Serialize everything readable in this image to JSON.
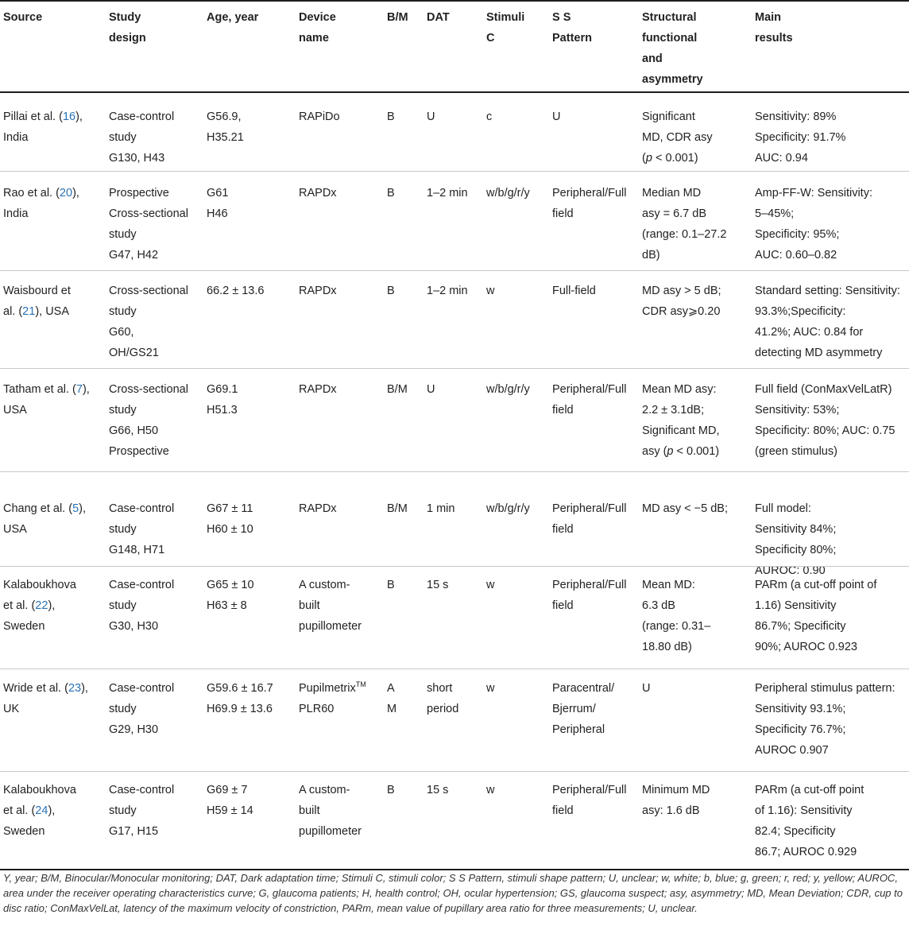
{
  "headers": [
    [
      "Source"
    ],
    [
      "Study",
      "design"
    ],
    [
      "Age, year"
    ],
    [
      "Device",
      "name"
    ],
    [
      "B/M"
    ],
    [
      "DAT"
    ],
    [
      "Stimuli",
      "C"
    ],
    [
      "S S",
      "Pattern"
    ],
    [
      "Structural",
      "functional",
      "and",
      "asymmetry"
    ],
    [
      "Main",
      "results"
    ]
  ],
  "rows": [
    {
      "source": {
        "pre": "Pillai et al. (",
        "ref": "16",
        "post": "),",
        "line2": "India"
      },
      "cells": [
        [
          "Case-control",
          "study",
          "G130, H43"
        ],
        [
          "G56.9,",
          "H35.21"
        ],
        [
          "RAPiDo"
        ],
        [
          "B"
        ],
        [
          "U"
        ],
        [
          "c"
        ],
        [
          "U"
        ],
        [
          "Significant",
          "MD, CDR asy",
          "(p < 0.001)"
        ],
        [
          "Sensitivity: 89%",
          "Specificity: 91.7%",
          "AUC: 0.94"
        ]
      ]
    },
    {
      "source": {
        "pre": "Rao et al. (",
        "ref": "20",
        "post": "),",
        "line2": "India"
      },
      "cells": [
        [
          "Prospective",
          "Cross-sectional",
          "study",
          "G47, H42"
        ],
        [
          "G61",
          "H46"
        ],
        [
          "RAPDx"
        ],
        [
          "B"
        ],
        [
          "1–2 min"
        ],
        [
          "w/b/g/r/y"
        ],
        [
          "Peripheral/Full",
          "field"
        ],
        [
          "Median MD",
          "asy = 6.7 dB",
          "(range: 0.1–27.2",
          "dB)"
        ],
        [
          "Amp-FF-W: Sensitivity:",
          "5–45%;",
          "Specificity: 95%;",
          "AUC: 0.60–0.82"
        ]
      ]
    },
    {
      "source": {
        "pre": "Waisbourd et",
        "mid": "al. (",
        "ref": "21",
        "post": "), USA"
      },
      "cells": [
        [
          "Cross-sectional",
          "study",
          "G60,",
          "OH/GS21"
        ],
        [
          "66.2 ± 13.6"
        ],
        [
          "RAPDx"
        ],
        [
          "B"
        ],
        [
          "1–2 min"
        ],
        [
          "w"
        ],
        [
          "Full-field"
        ],
        [
          "MD asy > 5 dB;",
          "CDR asy⩾0.20"
        ],
        [
          "Standard setting: Sensitivity:",
          "93.3%;Specificity:",
          "41.2%; AUC: 0.84 for",
          "detecting MD asymmetry"
        ]
      ]
    },
    {
      "source": {
        "pre": "Tatham et al. (",
        "ref": "7",
        "post": "),",
        "line2": "USA"
      },
      "cells": [
        [
          "Cross-sectional",
          "study",
          "G66, H50",
          "Prospective"
        ],
        [
          "G69.1",
          "H51.3"
        ],
        [
          "RAPDx"
        ],
        [
          "B/M"
        ],
        [
          "U"
        ],
        [
          "w/b/g/r/y"
        ],
        [
          "Peripheral/Full",
          "field"
        ],
        [
          "Mean MD asy:",
          "2.2 ± 3.1dB;",
          "Significant MD,",
          "asy (p < 0.001)"
        ],
        [
          "Full field (ConMaxVelLatR)",
          "Sensitivity: 53%;",
          "Specificity: 80%; AUC: 0.75",
          "(green stimulus)"
        ]
      ]
    },
    {
      "source": {
        "pre": "Chang et al. (",
        "ref": "5",
        "post": "),",
        "line2": "USA"
      },
      "cells": [
        [
          "Case-control",
          "study",
          "G148, H71"
        ],
        [
          "G67 ± 11",
          "H60 ± 10"
        ],
        [
          "RAPDx"
        ],
        [
          "B/M"
        ],
        [
          "1 min"
        ],
        [
          "w/b/g/r/y"
        ],
        [
          "Peripheral/Full",
          "field"
        ],
        [
          "MD asy < −5 dB;"
        ],
        [
          "Full model:",
          "Sensitivity 84%;",
          "Specificity 80%;",
          "AUROC: 0.90"
        ]
      ]
    },
    {
      "source": {
        "pre": "Kalaboukhova",
        "mid": "et al. (",
        "ref": "22",
        "post": "),",
        "line3": "Sweden"
      },
      "cells": [
        [
          "Case-control",
          "study",
          "G30, H30"
        ],
        [
          "G65 ± 10",
          "H63 ± 8"
        ],
        [
          "A custom-",
          "built",
          "pupillometer"
        ],
        [
          "B"
        ],
        [
          "15 s"
        ],
        [
          "w"
        ],
        [
          "Peripheral/Full",
          "field"
        ],
        [
          "Mean MD:",
          "6.3 dB",
          "(range: 0.31–",
          "18.80 dB)"
        ],
        [
          "PARm (a cut-off point of",
          "1.16) Sensitivity",
          "86.7%; Specificity",
          "90%; AUROC 0.923"
        ]
      ]
    },
    {
      "source": {
        "pre": "Wride et al. (",
        "ref": "23",
        "post": "),",
        "line2": "UK"
      },
      "device_sup": "TM",
      "cells": [
        [
          "Case-control",
          "study",
          "G29, H30"
        ],
        [
          "G59.6 ± 16.7",
          "H69.9 ± 13.6"
        ],
        [
          "Pupilmetrix",
          "PLR60"
        ],
        [
          "A",
          "M"
        ],
        [
          "short",
          "period"
        ],
        [
          "w"
        ],
        [
          "Paracentral/",
          "Bjerrum/",
          "Peripheral"
        ],
        [
          "U"
        ],
        [
          "Peripheral stimulus pattern:",
          "Sensitivity 93.1%;",
          "Specificity 76.7%;",
          "AUROC 0.907"
        ]
      ]
    },
    {
      "source": {
        "pre": "Kalaboukhova",
        "mid": "et al. (",
        "ref": "24",
        "post": "),",
        "line3": "Sweden"
      },
      "cells": [
        [
          "Case-control",
          "study",
          "G17, H15"
        ],
        [
          "G69 ± 7",
          "H59 ± 14"
        ],
        [
          "A custom-",
          "built",
          "pupillometer"
        ],
        [
          "B"
        ],
        [
          "15 s"
        ],
        [
          "w"
        ],
        [
          "Peripheral/Full",
          "field"
        ],
        [
          "Minimum MD",
          "asy: 1.6 dB"
        ],
        [
          "PARm (a cut-off point",
          "of 1.16): Sensitivity",
          "82.4; Specificity",
          "86.7; AUROC 0.929"
        ]
      ]
    }
  ],
  "footnote": "Y, year; B/M, Binocular/Monocular monitoring; DAT, Dark adaptation time; Stimuli C, stimuli color; S S Pattern, stimuli shape pattern; U, unclear; w, white; b, blue; g, green; r, red; y, yellow; AUROC, area under the receiver operating characteristics curve; G, glaucoma patients; H, health control; OH, ocular hypertension; GS, glaucoma suspect; asy, asymmetry; MD, Mean Deviation; CDR, cup to disc ratio; ConMaxVelLat, latency of the maximum velocity of constriction, PARm, mean value of pupillary area ratio for three measurements; U, unclear.",
  "colors": {
    "citation": "#2a72b5",
    "rule": "#1e1e1e",
    "separator": "#c8c8c8"
  }
}
